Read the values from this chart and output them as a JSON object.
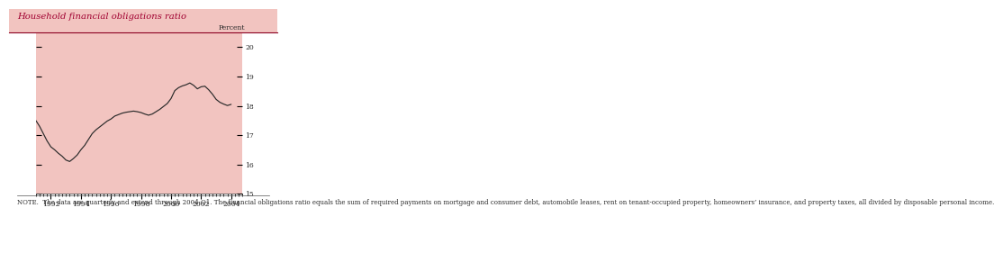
{
  "title": "Household financial obligations ratio",
  "ylabel_right": "Percent",
  "bg_pink": "#f2c4c0",
  "bg_white": "#ffffff",
  "line_color": "#2a2a2a",
  "title_color": "#a00030",
  "text_color": "#2a2a2a",
  "note_label_color": "#2a2a2a",
  "ylim": [
    15,
    20.5
  ],
  "yticks": [
    15,
    16,
    17,
    18,
    19,
    20
  ],
  "xmin": 1991.0,
  "xmax": 2004.75,
  "xticks": [
    1992,
    1994,
    1996,
    1998,
    2000,
    2002,
    2004
  ],
  "note_text": "NOTE.  The data are quarterly and extend through 2004:Q1. The financial obligations ratio equals the sum of required payments on mortgage and consumer debt, automobile leases, rent on tenant-occupied property, homeowners’ insurance, and property taxes, all divided by disposable personal income.",
  "data_x": [
    1991.0,
    1991.25,
    1991.5,
    1991.75,
    1992.0,
    1992.25,
    1992.5,
    1992.75,
    1993.0,
    1993.25,
    1993.5,
    1993.75,
    1994.0,
    1994.25,
    1994.5,
    1994.75,
    1995.0,
    1995.25,
    1995.5,
    1995.75,
    1996.0,
    1996.25,
    1996.5,
    1996.75,
    1997.0,
    1997.25,
    1997.5,
    1997.75,
    1998.0,
    1998.25,
    1998.5,
    1998.75,
    1999.0,
    1999.25,
    1999.5,
    1999.75,
    2000.0,
    2000.25,
    2000.5,
    2000.75,
    2001.0,
    2001.25,
    2001.5,
    2001.75,
    2002.0,
    2002.25,
    2002.5,
    2002.75,
    2003.0,
    2003.25,
    2003.5,
    2003.75,
    2004.0
  ],
  "data_y": [
    17.5,
    17.3,
    17.05,
    16.8,
    16.6,
    16.5,
    16.38,
    16.28,
    16.15,
    16.1,
    16.2,
    16.32,
    16.5,
    16.65,
    16.85,
    17.05,
    17.18,
    17.28,
    17.38,
    17.48,
    17.55,
    17.65,
    17.7,
    17.75,
    17.78,
    17.8,
    17.82,
    17.8,
    17.77,
    17.72,
    17.68,
    17.72,
    17.8,
    17.88,
    17.98,
    18.08,
    18.25,
    18.52,
    18.62,
    18.68,
    18.72,
    18.78,
    18.7,
    18.58,
    18.65,
    18.67,
    18.55,
    18.4,
    18.22,
    18.12,
    18.06,
    18.01,
    18.05
  ]
}
